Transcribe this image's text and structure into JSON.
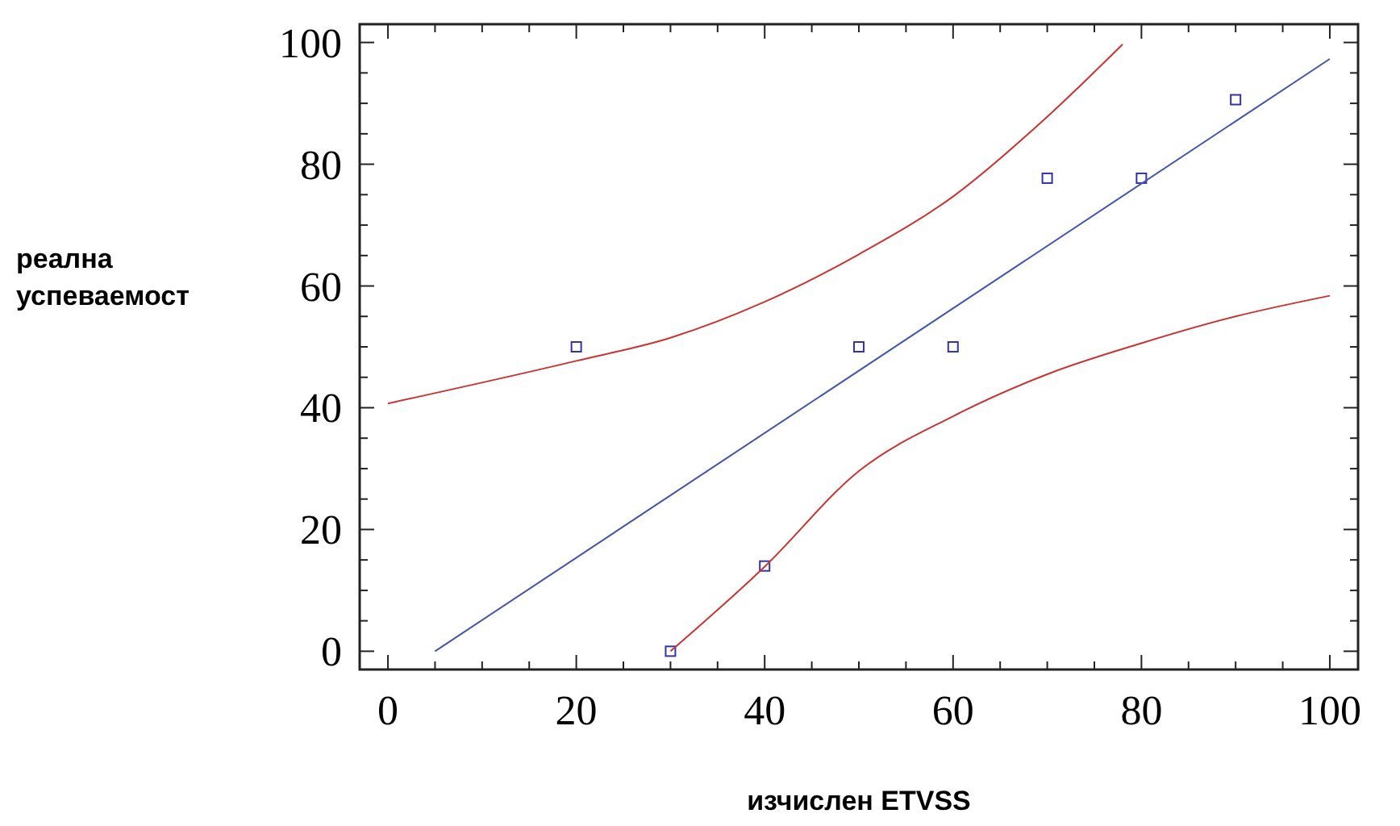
{
  "chart_data": {
    "type": "scatter",
    "xlabel": "изчислен ETVSS",
    "ylabel": "реална\nуспеваемост",
    "xlim": [
      -3,
      103
    ],
    "ylim": [
      -3,
      103
    ],
    "xticks": [
      0,
      {
        "value": 5,
        "label": null
      },
      {
        "value": 10,
        "label": null
      },
      {
        "value": 15,
        "label": null
      },
      20,
      {
        "value": 25,
        "label": null
      },
      {
        "value": 30,
        "label": null
      },
      {
        "value": 35,
        "label": null
      },
      40,
      {
        "value": 45,
        "label": null
      },
      {
        "value": 50,
        "label": null
      },
      {
        "value": 55,
        "label": null
      },
      60,
      {
        "value": 65,
        "label": null
      },
      {
        "value": 70,
        "label": null
      },
      {
        "value": 75,
        "label": null
      },
      80,
      {
        "value": 85,
        "label": null
      },
      {
        "value": 90,
        "label": null
      },
      {
        "value": 95,
        "label": null
      },
      100
    ],
    "yticks": [
      0,
      {
        "value": 5,
        "label": null
      },
      {
        "value": 10,
        "label": null
      },
      {
        "value": 15,
        "label": null
      },
      20,
      {
        "value": 25,
        "label": null
      },
      {
        "value": 30,
        "label": null
      },
      {
        "value": 35,
        "label": null
      },
      40,
      {
        "value": 45,
        "label": null
      },
      {
        "value": 50,
        "label": null
      },
      {
        "value": 55,
        "label": null
      },
      60,
      {
        "value": 65,
        "label": null
      },
      {
        "value": 70,
        "label": null
      },
      {
        "value": 75,
        "label": null
      },
      80,
      {
        "value": 85,
        "label": null
      },
      {
        "value": 90,
        "label": null
      },
      {
        "value": 95,
        "label": null
      },
      100
    ],
    "grid": false,
    "marker": "square",
    "series": [
      {
        "color": "#3333aa",
        "x": [
          20,
          30,
          40,
          50,
          60,
          70,
          80,
          90
        ],
        "values": [
          50,
          0,
          14,
          50,
          50,
          77.7,
          77.7,
          90.6
        ]
      },
      {
        "type": "line",
        "color": "#4455aa",
        "x": [
          5,
          100
        ],
        "values": [
          0,
          97.3
        ],
        "marker": "none"
      },
      {
        "type": "line",
        "color": "#cc3333",
        "x": [
          0,
          20,
          30,
          40,
          50,
          60,
          70,
          78
        ],
        "values": [
          40.7,
          47.7,
          51.5,
          57.4,
          65.2,
          74.7,
          87.8,
          99.7
        ],
        "marker": "none"
      },
      {
        "type": "line",
        "color": "#cc3333",
        "x": [
          30,
          40,
          50,
          60,
          70,
          80,
          90,
          100
        ],
        "values": [
          0,
          13.9,
          29.6,
          38.6,
          45.5,
          50.6,
          55,
          58.4
        ],
        "marker": "none"
      }
    ]
  }
}
